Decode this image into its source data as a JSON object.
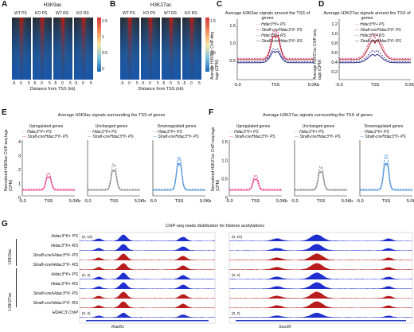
{
  "panelA": {
    "label": "A",
    "title": "H3K9ac",
    "col_labels": [
      "WT PS",
      "KO PS",
      "WT RS",
      "KO RS"
    ],
    "xaxis": "Distance from TSS (kb)",
    "ticks": [
      "-5",
      "0",
      "5",
      "-5",
      "0",
      "5",
      "-5",
      "0",
      "5",
      "-5",
      "0",
      "5"
    ]
  },
  "panelB": {
    "label": "B",
    "title": "H3K27ac",
    "col_labels": [
      "WT PS",
      "KO PS",
      "WT RS",
      "KO RS"
    ],
    "xaxis": "Distance from TSS (kb)",
    "ticks": [
      "-5",
      "0",
      "5",
      "-5",
      "0",
      "5",
      "-5",
      "0",
      "5",
      "-5",
      "0",
      "5"
    ]
  },
  "colorbarA": {
    "ticks": [
      "1.5",
      "1",
      "0.5",
      "0"
    ]
  },
  "colorbarB": {
    "ticks": [
      "1.5",
      "1",
      "0.5",
      "0"
    ]
  },
  "panelC": {
    "label": "C",
    "title": "Average H3K9ac signals around the TSS of genes",
    "ylabel": "Average H3K9ac ChIP-seq tags (CPM)",
    "yticks": [
      "1.5",
      "1.0",
      "0.5"
    ],
    "xticks": [
      "-5.0",
      "TSS",
      "5.0Kb"
    ],
    "legend": [
      "Hdac3^f/+ PS",
      "Stra8-cre/Hdac3^f/- PS",
      "Hdac3^f/+ RS",
      "Stra8-cre/Hdac3^f/- RS"
    ]
  },
  "panelD": {
    "label": "D",
    "title": "Average H3K27ac signals around the TSS of genes",
    "ylabel": "Average H3K27ac ChIP-seq tags (CPM)",
    "yticks": [
      "1.2",
      "1.0",
      "0.8",
      "0.6",
      "0.4",
      "0.2"
    ],
    "xticks": [
      "-5.0",
      "TSS",
      "5.0Kb"
    ],
    "legend": [
      "Hdac3^f/+ PS",
      "Stra8-cre/Hdac3^f/- PS",
      "Hdac3^f/+ RS",
      "Stra8-cre/Hdac3^f/- RS"
    ]
  },
  "panelE": {
    "label": "E",
    "title": "Average H3K9ac signals surrounding the TSS of genes",
    "ylabel": "Normalized H3K9ac ChIP-seq tags (CPM)",
    "sub_titles": [
      "Upregulated genes",
      "Unchanged genes",
      "Downregulated genes"
    ],
    "legend": [
      "Hdac3^f/+ PS",
      "Stra8-cre/Hdac3^f/- PS"
    ],
    "yticks": [
      "4",
      "3",
      "2",
      "1",
      "0"
    ],
    "xticks": [
      "-5.0",
      "TSS",
      "5.0Kb"
    ]
  },
  "panelF": {
    "label": "F",
    "title": "Average H3K27ac signals surrounding the TSS of genes",
    "ylabel": "Normalized H3K27ac ChIP-seq tags (CPM)",
    "sub_titles": [
      "Upregulated genes",
      "Unchanged genes",
      "Downregulated genes"
    ],
    "legend": [
      "Hdac3^f/+ PS",
      "Stra8-cre/Hdac3^f/- PS"
    ],
    "yticks": [
      "1.5",
      "1.0",
      "0.5",
      "0"
    ],
    "xticks": [
      "-5.0",
      "TSS",
      "5.0Kb"
    ]
  },
  "panelG": {
    "label": "G",
    "title": "ChIP-seq reads distribution for histone acetylations",
    "group1": "H3K9ac",
    "group2": "H3K27ac",
    "tracks": [
      "Hdac3^f/+ PS",
      "Hdac3^f/+ RS",
      "Stra8-cre/Hdac3^f/- PS",
      "Stra8-cre/Hdac3^f/- RS",
      "Hdac3^f/+ PS",
      "Hdac3^f/+ RS",
      "Stra8-cre/Hdac3^f/- PS",
      "Stra8-cre/Hdac3^f/- RS",
      "HDAC3 ChIP"
    ],
    "ranges": [
      "(0, 10)",
      "(0, 2)",
      "(0, 2)"
    ],
    "genes": [
      "Rad51",
      "Sox30"
    ]
  },
  "colors": {
    "ps_wt": "#e8428a",
    "ps_ko": "#b0202a",
    "rs_wt": "#3b3fa6",
    "rs_ko": "#2a2a80",
    "gray": "#8a8a8a",
    "blue": "#4a90d9",
    "track_blue": "#1f2fcf",
    "track_red": "#b81c1c",
    "heat_hi": "#d6373a",
    "heat_lo": "#1a66b3"
  }
}
